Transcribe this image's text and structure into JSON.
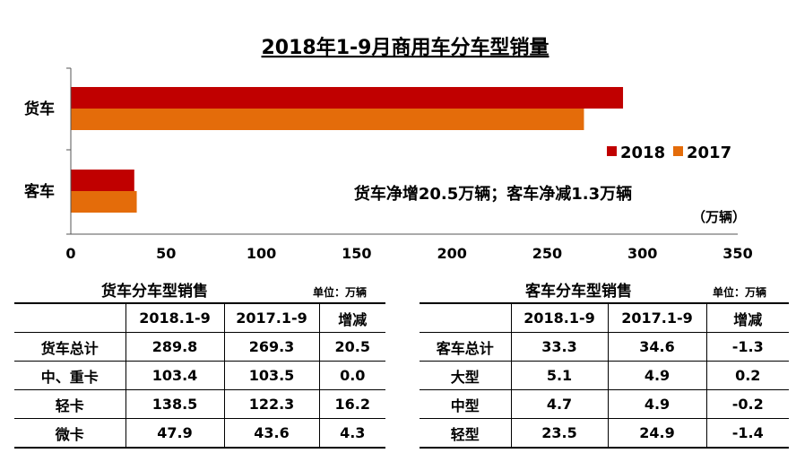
{
  "chart_data": {
    "type": "bar",
    "orientation": "horizontal",
    "title": "2018年1-9月商用车分车型销量",
    "categories": [
      "货车",
      "客车"
    ],
    "series": [
      {
        "name": "2018",
        "values": [
          289.8,
          33.3
        ],
        "color": "#c00000"
      },
      {
        "name": "2017",
        "values": [
          269.3,
          34.6
        ],
        "color": "#e46c0a"
      }
    ],
    "xlim": [
      0,
      350
    ],
    "xticks": [
      0,
      50,
      100,
      150,
      200,
      250,
      300,
      350
    ],
    "unit": "（万辆）",
    "annotation": "货车净增20.5万辆；客车净减1.3万辆",
    "legend_position": "right",
    "grid": false
  },
  "truck_table": {
    "title": "货车分车型销售",
    "unit": "单位：万辆",
    "headers": [
      "",
      "2018.1-9",
      "2017.1-9",
      "增减"
    ],
    "rows": [
      [
        "货车总计",
        "289.8",
        "269.3",
        "20.5"
      ],
      [
        "中、重卡",
        "103.4",
        "103.5",
        "0.0"
      ],
      [
        "轻卡",
        "138.5",
        "122.3",
        "16.2"
      ],
      [
        "微卡",
        "47.9",
        "43.6",
        "4.3"
      ]
    ]
  },
  "bus_table": {
    "title": "客车分车型销售",
    "unit": "单位：万辆",
    "headers": [
      "",
      "2018.1-9",
      "2017.1-9",
      "增减"
    ],
    "rows": [
      [
        "客车总计",
        "33.3",
        "34.6",
        "-1.3"
      ],
      [
        "大型",
        "5.1",
        "4.9",
        "0.2"
      ],
      [
        "中型",
        "4.7",
        "4.9",
        "-0.2"
      ],
      [
        "轻型",
        "23.5",
        "24.9",
        "-1.4"
      ]
    ]
  }
}
